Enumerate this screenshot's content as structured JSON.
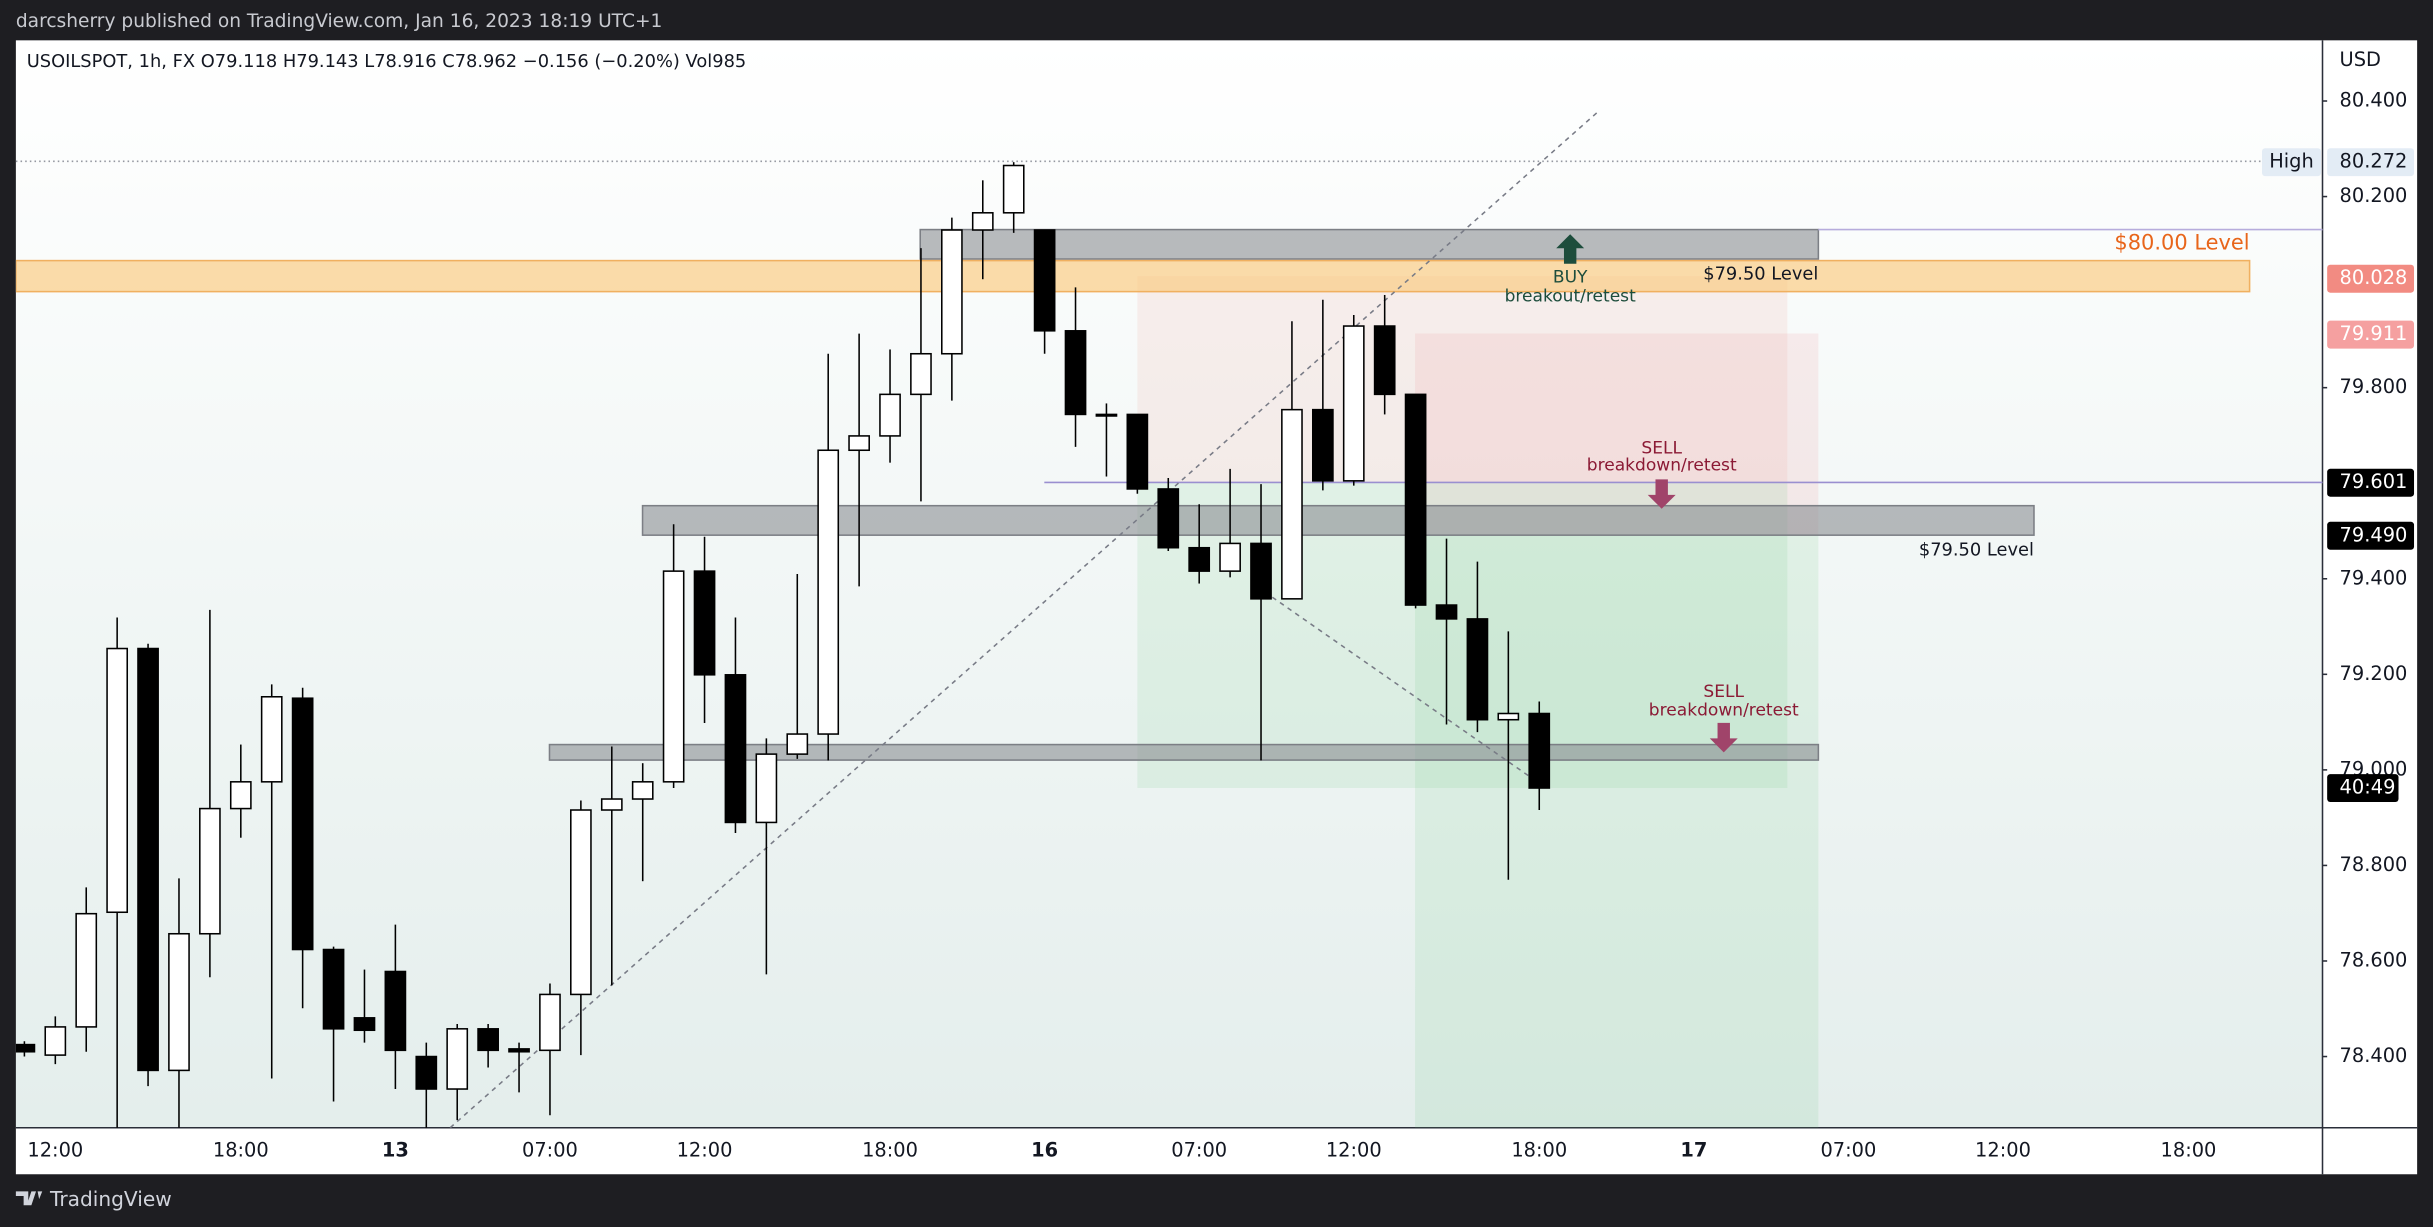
{
  "header": "darcsherry published on TradingView.com, Jan 16, 2023 18:19 UTC+1",
  "footer": "TradingView",
  "chart_data": {
    "type": "candlestick",
    "symbol_line": "USOILSPOT, 1h, FX  O79.118  H79.143  L78.916  C78.962  −0.156 (−0.20%)  Vol985",
    "currency": "USD",
    "up_color": "#ffffff",
    "down_color": "#000000",
    "categories": [
      null,
      "12:00",
      null,
      null,
      null,
      null,
      null,
      "18:00",
      null,
      null,
      null,
      null,
      "13",
      null,
      null,
      null,
      null,
      "07:00",
      null,
      null,
      null,
      null,
      "12:00",
      null,
      null,
      null,
      null,
      null,
      "18:00",
      null,
      null,
      null,
      null,
      "16",
      null,
      null,
      null,
      null,
      "07:00",
      null,
      null,
      null,
      null,
      "12:00",
      null,
      null,
      null,
      null,
      null,
      "18:00",
      null,
      null,
      null,
      null,
      "17",
      null,
      null,
      null,
      null,
      "07:00",
      null,
      null,
      null,
      null,
      "12:00",
      null,
      null,
      null,
      null,
      null,
      "18:00",
      null,
      null,
      null,
      null
    ],
    "open": [
      78.425,
      78.403,
      78.462,
      78.702,
      79.254,
      78.371,
      78.657,
      78.919,
      78.975,
      79.15,
      78.624,
      78.481,
      78.578,
      78.4,
      78.332,
      78.458,
      78.416,
      78.413,
      78.53,
      78.916,
      78.939,
      78.975,
      79.416,
      79.199,
      78.89,
      79.033,
      79.075,
      79.669,
      79.699,
      79.786,
      79.871,
      80.13,
      80.166,
      80.13,
      79.919,
      79.744,
      79.744,
      79.588,
      79.465,
      79.416,
      79.474,
      79.358,
      79.754,
      79.605,
      79.929,
      79.786,
      79.345,
      79.316,
      79.105,
      79.118,
      null,
      null,
      null,
      null,
      null,
      null,
      null,
      null,
      null,
      null,
      null,
      null,
      null,
      null,
      null,
      null,
      null,
      null,
      null,
      null,
      null,
      null,
      null,
      null,
      null
    ],
    "high": [
      78.432,
      78.484,
      78.754,
      79.319,
      79.264,
      78.773,
      79.335,
      79.053,
      79.179,
      79.172,
      78.63,
      78.582,
      78.676,
      78.429,
      78.468,
      78.468,
      78.429,
      78.553,
      78.936,
      79.049,
      79.014,
      79.514,
      79.488,
      79.319,
      79.066,
      79.41,
      79.871,
      79.913,
      79.88,
      80.092,
      80.156,
      80.234,
      80.272,
      80.13,
      80.01,
      79.767,
      79.744,
      79.611,
      79.556,
      79.63,
      79.598,
      79.939,
      79.984,
      79.952,
      79.994,
      79.786,
      79.484,
      79.436,
      79.29,
      79.143,
      null,
      null,
      null,
      null,
      null,
      null,
      null,
      null,
      null,
      null,
      null,
      null,
      null,
      null,
      null,
      null,
      null,
      null,
      null,
      null,
      null,
      null,
      null,
      null,
      null
    ],
    "low": [
      78.4,
      78.384,
      78.41,
      78.24,
      78.338,
      78.22,
      78.566,
      78.858,
      78.354,
      78.501,
      78.306,
      78.429,
      78.332,
      78.24,
      78.267,
      78.377,
      78.325,
      78.277,
      78.403,
      78.549,
      78.767,
      78.962,
      79.098,
      78.868,
      78.572,
      79.023,
      79.02,
      79.384,
      79.643,
      79.562,
      79.773,
      80.027,
      80.124,
      79.871,
      79.676,
      79.614,
      79.578,
      79.458,
      79.39,
      79.403,
      79.02,
      79.358,
      79.585,
      79.595,
      79.744,
      79.338,
      79.095,
      79.079,
      78.77,
      78.916,
      null,
      null,
      null,
      null,
      null,
      null,
      null,
      null,
      null,
      null,
      null,
      null,
      null,
      null,
      null,
      null,
      null,
      null,
      null,
      null,
      null,
      null,
      null,
      null,
      null
    ],
    "close": [
      78.41,
      78.462,
      78.699,
      79.254,
      78.371,
      78.657,
      78.919,
      78.975,
      79.153,
      78.624,
      78.458,
      78.455,
      78.413,
      78.332,
      78.458,
      78.413,
      78.41,
      78.53,
      78.916,
      78.939,
      78.975,
      79.416,
      79.199,
      78.89,
      79.033,
      79.075,
      79.669,
      79.699,
      79.786,
      79.871,
      80.13,
      80.166,
      80.265,
      79.919,
      79.744,
      79.741,
      79.588,
      79.465,
      79.416,
      79.474,
      79.358,
      79.754,
      79.605,
      79.929,
      79.786,
      79.345,
      79.316,
      79.105,
      79.118,
      78.962,
      null,
      null,
      null,
      null,
      null,
      null,
      null,
      null,
      null,
      null,
      null,
      null,
      null,
      null,
      null,
      null,
      null,
      null,
      null,
      null,
      null,
      null,
      null,
      null,
      null
    ],
    "ylim": [
      78.251,
      80.527
    ],
    "yticks": [
      {
        "value": 78.4,
        "label": "78.400"
      },
      {
        "value": 78.6,
        "label": "78.600"
      },
      {
        "value": 78.8,
        "label": "78.800"
      },
      {
        "value": 79.0,
        "label": "79.000"
      },
      {
        "value": 79.2,
        "label": "79.200"
      },
      {
        "value": 79.4,
        "label": "79.400"
      },
      {
        "value": 79.8,
        "label": "79.800"
      },
      {
        "value": 80.2,
        "label": "80.200"
      },
      {
        "value": 80.4,
        "label": "80.400"
      }
    ],
    "grid": false,
    "high_tag": "High",
    "price_labels": [
      {
        "value": 80.272,
        "label": "80.272",
        "color": "#e3ecf5",
        "text_color": "#131722"
      },
      {
        "value": 80.028,
        "label": "80.028",
        "color": "#f28b82",
        "text_color": "#ffffff"
      },
      {
        "value": 79.911,
        "label": "79.911",
        "color": "#f5a0a0",
        "text_color": "#ffffff"
      },
      {
        "value": 79.601,
        "label": "79.601",
        "color": "#000000",
        "text_color": "#ffffff"
      },
      {
        "value": 79.49,
        "label": "79.490",
        "color": "#000000",
        "text_color": "#ffffff"
      }
    ],
    "countdown": "40:49",
    "annotations": [
      {
        "text": "$80.00 Level",
        "color": "#e8651a"
      },
      {
        "text": "$79.50 Level",
        "color": "#131722"
      },
      {
        "text": "$79.50 Level",
        "color": "#131722"
      },
      {
        "text": "BUY",
        "color": "#1d4d3c"
      },
      {
        "text": "breakout/retest",
        "color": "#1d4d3c"
      },
      {
        "text": "SELL",
        "color": "#8b1a35"
      },
      {
        "text": "breakdown/retest",
        "color": "#8b1a35"
      },
      {
        "text": "SELL",
        "color": "#8b1a35"
      },
      {
        "text": "breakdown/retest",
        "color": "#8b1a35"
      }
    ]
  }
}
